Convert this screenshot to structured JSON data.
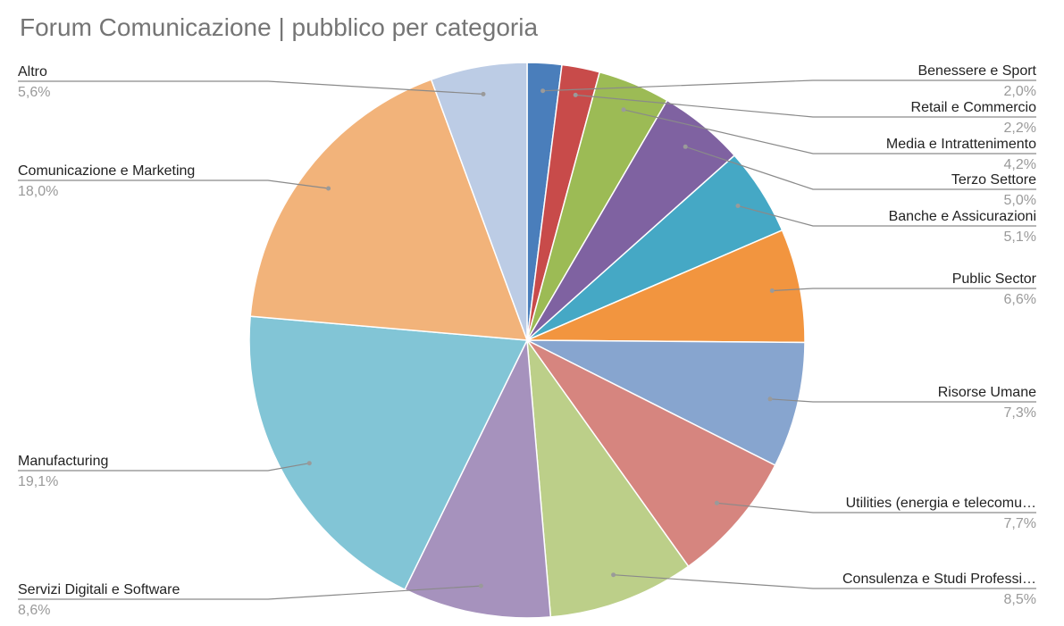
{
  "chart_data": {
    "type": "pie",
    "title": "Forum Comunicazione | pubblico per categoria",
    "start_angle": "12 o'clock, clockwise",
    "legend": "none (leader-line labels)",
    "slices": [
      {
        "name": "Benessere e Sport",
        "label": "Benessere e Sport",
        "value": 2.0,
        "display": "2,0%",
        "color": "#4a7ebb"
      },
      {
        "name": "Retail e Commercio",
        "label": "Retail e Commercio",
        "value": 2.2,
        "display": "2,2%",
        "color": "#c84b4a"
      },
      {
        "name": "Media e Intrattenimento",
        "label": "Media e Intrattenimento",
        "value": 4.2,
        "display": "4,2%",
        "color": "#9cbb55"
      },
      {
        "name": "Terzo Settore",
        "label": "Terzo Settore",
        "value": 5.0,
        "display": "5,0%",
        "color": "#7f62a1"
      },
      {
        "name": "Banche e Assicurazioni",
        "label": "Banche e Assicurazioni",
        "value": 5.1,
        "display": "5,1%",
        "color": "#45a8c5"
      },
      {
        "name": "Public Sector",
        "label": "Public Sector",
        "value": 6.6,
        "display": "6,6%",
        "color": "#f2953f"
      },
      {
        "name": "Risorse Umane",
        "label": "Risorse Umane",
        "value": 7.3,
        "display": "7,3%",
        "color": "#87a5cf"
      },
      {
        "name": "Utilities (energia e telecomunicazioni)",
        "label": "Utilities (energia e telecomu…",
        "value": 7.7,
        "display": "7,7%",
        "color": "#d6857f"
      },
      {
        "name": "Consulenza e Studi Professionali",
        "label": "Consulenza e Studi Professi…",
        "value": 8.5,
        "display": "8,5%",
        "color": "#bccf89"
      },
      {
        "name": "Servizi Digitali e Software",
        "label": "Servizi Digitali e Software",
        "value": 8.6,
        "display": "8,6%",
        "color": "#a692bd"
      },
      {
        "name": "Manufacturing",
        "label": "Manufacturing",
        "value": 19.1,
        "display": "19,1%",
        "color": "#82c5d6"
      },
      {
        "name": "Comunicazione e Marketing",
        "label": "Comunicazione e Marketing",
        "value": 18.0,
        "display": "18,0%",
        "color": "#f2b37a"
      },
      {
        "name": "Altro",
        "label": "Altro",
        "value": 5.6,
        "display": "5,6%",
        "color": "#bccce5"
      }
    ]
  }
}
